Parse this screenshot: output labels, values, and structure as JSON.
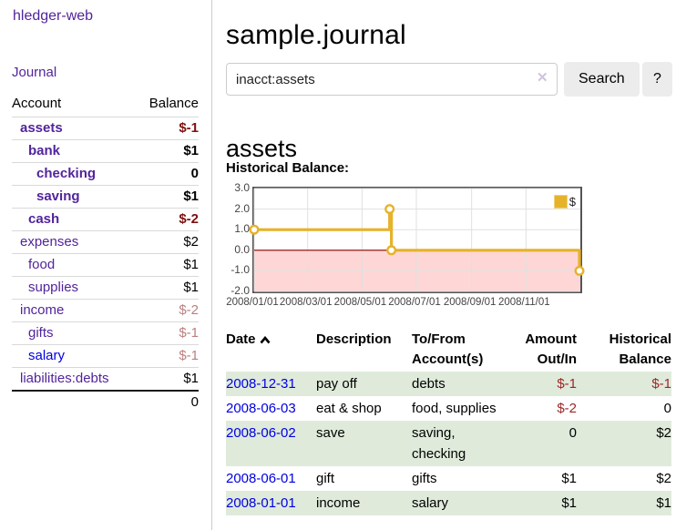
{
  "sidebar": {
    "brand": "hledger-web",
    "nav": {
      "journal": "Journal"
    },
    "accounts": {
      "header": {
        "account": "Account",
        "balance": "Balance"
      },
      "rows": [
        {
          "name": "assets",
          "balance": "$-1",
          "depth": 1,
          "bold": true,
          "name_style": "purple",
          "balance_style": "neg-strong"
        },
        {
          "name": "bank",
          "balance": "$1",
          "depth": 2,
          "bold": true,
          "name_style": "purple",
          "balance_style": "normal"
        },
        {
          "name": "checking",
          "balance": "0",
          "depth": 3,
          "bold": true,
          "name_style": "purple",
          "balance_style": "normal"
        },
        {
          "name": "saving",
          "balance": "$1",
          "depth": 3,
          "bold": true,
          "name_style": "purple",
          "balance_style": "normal"
        },
        {
          "name": "cash",
          "balance": "$-2",
          "depth": 2,
          "bold": true,
          "name_style": "purple",
          "balance_style": "neg-strong"
        },
        {
          "name": "expenses",
          "balance": "$2",
          "depth": 1,
          "bold": false,
          "name_style": "purple",
          "balance_style": "normal"
        },
        {
          "name": "food",
          "balance": "$1",
          "depth": 2,
          "bold": false,
          "name_style": "purple",
          "balance_style": "normal"
        },
        {
          "name": "supplies",
          "balance": "$1",
          "depth": 2,
          "bold": false,
          "name_style": "purple",
          "balance_style": "normal"
        },
        {
          "name": "income",
          "balance": "$-2",
          "depth": 1,
          "bold": false,
          "name_style": "purple",
          "balance_style": "neg-soft"
        },
        {
          "name": "gifts",
          "balance": "$-1",
          "depth": 2,
          "bold": false,
          "name_style": "purple",
          "balance_style": "neg-soft"
        },
        {
          "name": "salary",
          "balance": "$-1",
          "depth": 2,
          "bold": false,
          "name_style": "blue",
          "balance_style": "neg-soft"
        },
        {
          "name": "liabilities:debts",
          "balance": "$1",
          "depth": 1,
          "bold": false,
          "name_style": "purple",
          "balance_style": "normal"
        }
      ],
      "total": "0"
    }
  },
  "header": {
    "title": "sample.journal"
  },
  "search": {
    "value": "inacct:assets",
    "clear_icon": "✕",
    "search_button": "Search",
    "help_button": "?"
  },
  "account_view": {
    "heading": "assets",
    "section_label": "Historical Balance:"
  },
  "chart_data": {
    "type": "line",
    "step": true,
    "title": "Historical Balance:",
    "series": [
      {
        "name": "$",
        "color": "#e6b229",
        "points": [
          {
            "x": "2008-01-01",
            "y": 1
          },
          {
            "x": "2008-06-01",
            "y": 2
          },
          {
            "x": "2008-06-03",
            "y": 0
          },
          {
            "x": "2008-12-31",
            "y": -1
          }
        ]
      }
    ],
    "x_range": [
      "2008-01-01",
      "2009-01-01"
    ],
    "x_ticks": [
      {
        "x": "2008-01-01",
        "label": "2008/01/01"
      },
      {
        "x": "2008-03-01",
        "label": "2008/03/01"
      },
      {
        "x": "2008-05-01",
        "label": "2008/05/01"
      },
      {
        "x": "2008-07-01",
        "label": "2008/07/01"
      },
      {
        "x": "2008-09-01",
        "label": "2008/09/01"
      },
      {
        "x": "2008-11-01",
        "label": "2008/11/01"
      }
    ],
    "y_ticks": [
      "3.0",
      "2.0",
      "1.0",
      "0.0",
      "-1.0",
      "-2.0"
    ],
    "ylim": [
      -2,
      3
    ],
    "grid": true,
    "legend_position": "top-right",
    "legend_label": "$",
    "zero_line_color": "#8b0000",
    "negative_region_color": "#ffd6d6",
    "grid_color": "#e0e0e0",
    "border_color": "#545454"
  },
  "register": {
    "headers": {
      "date": "Date",
      "description": "Description",
      "tofrom_1": "To/From",
      "tofrom_2": "Account(s)",
      "amount_1": "Amount",
      "amount_2": "Out/In",
      "balance_1": "Historical",
      "balance_2": "Balance"
    },
    "rows": [
      {
        "date": "2008-12-31",
        "description": "pay off",
        "accounts": "debts",
        "amount": "$-1",
        "balance": "$-1"
      },
      {
        "date": "2008-06-03",
        "description": "eat & shop",
        "accounts": "food, supplies",
        "amount": "$-2",
        "balance": "0"
      },
      {
        "date": "2008-06-02",
        "description": "save",
        "accounts": "saving, checking",
        "amount": "0",
        "balance": "$2"
      },
      {
        "date": "2008-06-01",
        "description": "gift",
        "accounts": "gifts",
        "amount": "$1",
        "balance": "$2"
      },
      {
        "date": "2008-01-01",
        "description": "income",
        "accounts": "salary",
        "amount": "$1",
        "balance": "$1"
      }
    ]
  }
}
